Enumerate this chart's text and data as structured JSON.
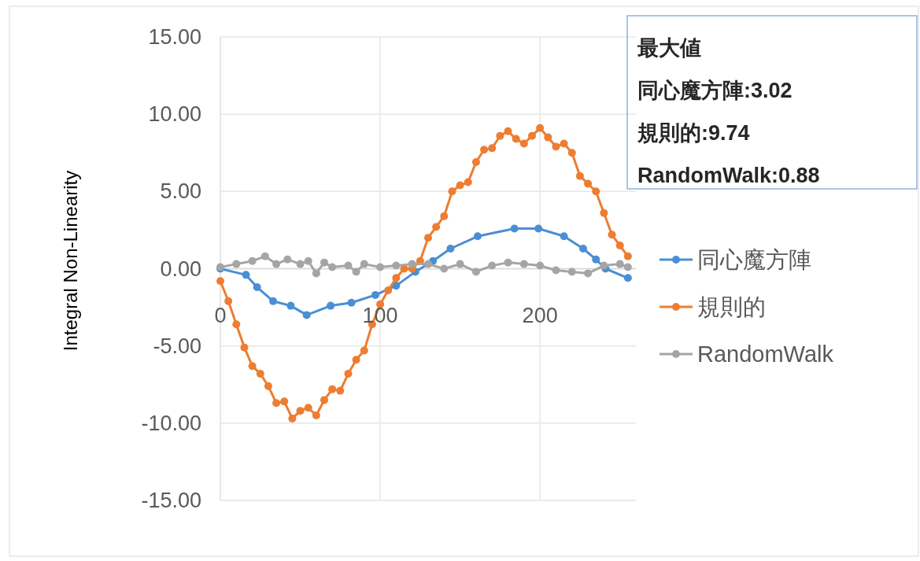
{
  "chart_data": {
    "type": "line",
    "ylabel": "Integral Non-Linearity",
    "xlim": [
      0,
      260
    ],
    "xticks": [
      0,
      100,
      200
    ],
    "ylim": [
      -15,
      15
    ],
    "yticks": [
      {
        "value": -15,
        "label": "-15.00"
      },
      {
        "value": -10,
        "label": "-10.00"
      },
      {
        "value": -5,
        "label": "-5.00"
      },
      {
        "value": 0,
        "label": "0.00"
      },
      {
        "value": 5,
        "label": "5.00"
      },
      {
        "value": 10,
        "label": "10.00"
      },
      {
        "value": 15,
        "label": "15.00"
      }
    ],
    "grid": true,
    "legend": "right",
    "marker": "circle",
    "line_style": "solid",
    "annotations": [
      "最大値",
      "同心魔方陣:3.02",
      "規則的:9.74",
      "RandomWalk:0.88"
    ],
    "series": [
      {
        "name": "同心魔方陣",
        "color": "#4a8fd4",
        "x": [
          0,
          16,
          23,
          33,
          44,
          54,
          69,
          82,
          97,
          110,
          122,
          133,
          144,
          161,
          184,
          199,
          215,
          227,
          235,
          241,
          255
        ],
        "values": [
          0,
          -0.4,
          -1.2,
          -2.1,
          -2.4,
          -3.0,
          -2.4,
          -2.2,
          -1.7,
          -1.1,
          -0.2,
          0.5,
          1.3,
          2.1,
          2.6,
          2.6,
          2.1,
          1.3,
          0.6,
          0,
          -0.6
        ]
      },
      {
        "name": "規則的",
        "color": "#ed7d31",
        "x": [
          0,
          5,
          10,
          15,
          20,
          25,
          30,
          35,
          40,
          45,
          50,
          55,
          60,
          65,
          70,
          75,
          80,
          85,
          90,
          95,
          100,
          105,
          110,
          115,
          120,
          125,
          130,
          135,
          140,
          145,
          150,
          155,
          160,
          165,
          170,
          175,
          180,
          185,
          190,
          195,
          200,
          205,
          210,
          215,
          220,
          225,
          230,
          235,
          240,
          245,
          250,
          255
        ],
        "values": [
          -0.8,
          -2.1,
          -3.6,
          -5.1,
          -6.3,
          -6.8,
          -7.6,
          -8.7,
          -8.6,
          -9.7,
          -9.2,
          -9.0,
          -9.5,
          -8.5,
          -7.8,
          -7.9,
          -6.8,
          -5.9,
          -5.3,
          -3.6,
          -2.3,
          -1.4,
          -0.6,
          0.0,
          0.0,
          0.5,
          2.0,
          2.7,
          3.4,
          5.0,
          5.4,
          5.6,
          6.9,
          7.7,
          7.8,
          8.6,
          8.9,
          8.4,
          8.1,
          8.6,
          9.1,
          8.5,
          7.9,
          8.1,
          7.5,
          6.0,
          5.5,
          5.0,
          3.6,
          2.2,
          1.5,
          0.8
        ]
      },
      {
        "name": "RandomWalk",
        "color": "#a5a5a5",
        "x": [
          0,
          10,
          20,
          28,
          35,
          42,
          50,
          55,
          60,
          65,
          70,
          80,
          85,
          90,
          100,
          110,
          120,
          130,
          140,
          150,
          160,
          170,
          180,
          190,
          200,
          210,
          220,
          230,
          240,
          250,
          255
        ],
        "values": [
          0.1,
          0.3,
          0.5,
          0.8,
          0.3,
          0.6,
          0.3,
          0.5,
          -0.3,
          0.4,
          0.1,
          0.2,
          -0.2,
          0.3,
          0.1,
          0.2,
          0.3,
          0.3,
          0.0,
          0.3,
          -0.2,
          0.2,
          0.4,
          0.3,
          0.2,
          -0.1,
          -0.2,
          -0.3,
          0.2,
          0.3,
          0.1
        ]
      }
    ]
  }
}
